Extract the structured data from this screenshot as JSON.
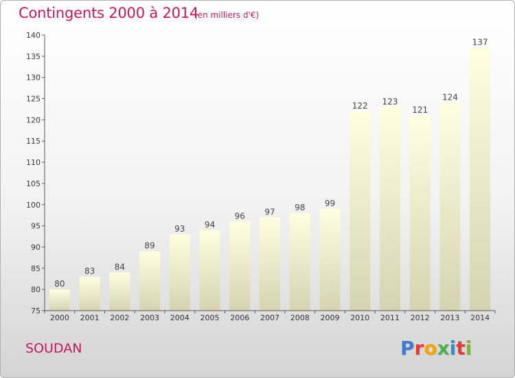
{
  "header": {
    "title": "Contingents 2000 à 2014",
    "subtitle": "(en milliers d'€)"
  },
  "footer": {
    "commune": "SOUDAN",
    "logo": "Proxiti"
  },
  "colors": {
    "title": "#c2185b",
    "bar_top": "#ffffe0",
    "bar_bottom": "#d6d3b0",
    "logo_letters": [
      "#3a7bd5",
      "#e53935",
      "#f4a300",
      "#4caf50",
      "#2a8fd6",
      "#e53935",
      "#7cb342"
    ]
  },
  "chart_data": {
    "type": "bar",
    "title": "Contingents 2000 à 2014",
    "subtitle": "(en milliers d'€)",
    "categories": [
      "2000",
      "2001",
      "2002",
      "2003",
      "2004",
      "2005",
      "2006",
      "2007",
      "2008",
      "2009",
      "2010",
      "2011",
      "2012",
      "2013",
      "2014"
    ],
    "values": [
      80,
      83,
      84,
      89,
      93,
      94,
      96,
      97,
      98,
      99,
      122,
      123,
      121,
      124,
      137
    ],
    "ylim": [
      75,
      140
    ],
    "yticks": [
      75,
      80,
      85,
      90,
      95,
      100,
      105,
      110,
      115,
      120,
      125,
      130,
      135,
      140
    ],
    "grid": false,
    "data_labels": true
  }
}
